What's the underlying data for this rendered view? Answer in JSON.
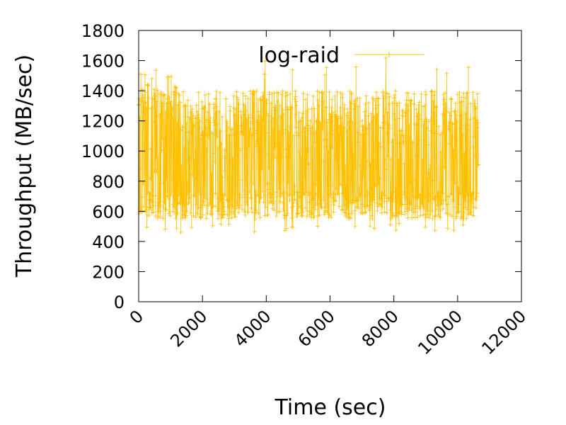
{
  "chart_data": {
    "type": "line",
    "title": "",
    "xlabel": "Time (sec)",
    "ylabel": "Throughput (MB/sec)",
    "xlim": [
      0,
      12000
    ],
    "ylim": [
      0,
      1800
    ],
    "x_ticks": [
      "0",
      "2000",
      "4000",
      "6000",
      "8000",
      "10000",
      "12000"
    ],
    "y_ticks": [
      "0",
      "200",
      "400",
      "600",
      "800",
      "1000",
      "1200",
      "1400",
      "1600",
      "1800"
    ],
    "grid": false,
    "legend_position": "top-right",
    "series": [
      {
        "name": "log-raid",
        "color": "#ffc000",
        "marker": "plus",
        "x_range": [
          0,
          10650
        ],
        "approx_min": 460,
        "approx_max": 1650,
        "typical_low": 550,
        "typical_high": 1400
      }
    ]
  }
}
